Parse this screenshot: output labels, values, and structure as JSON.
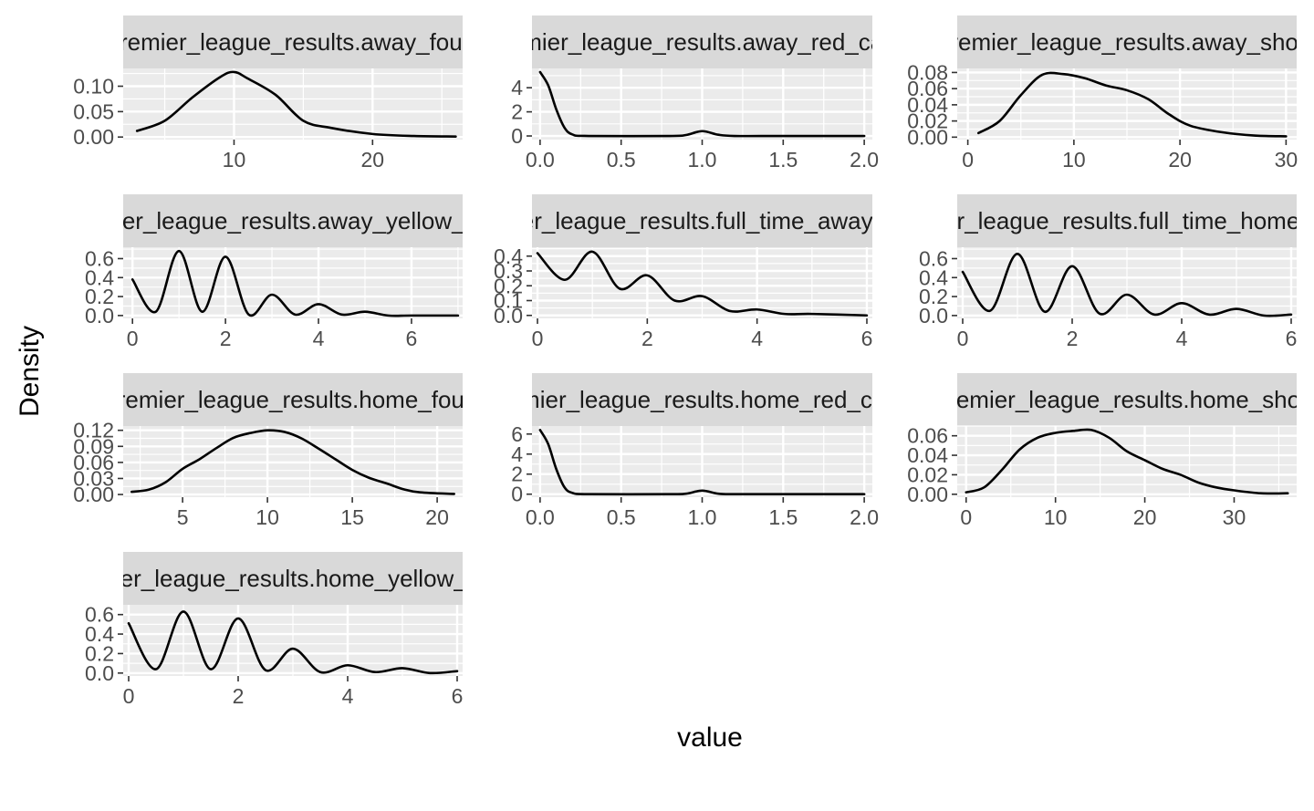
{
  "chart_data": {
    "type": "area",
    "xlabel": "value",
    "ylabel": "Density",
    "grid": true,
    "panels": [
      {
        "strip": "premier_league_results.away_fouls",
        "xlim": [
          2,
          26.5
        ],
        "ylim": [
          -0.005,
          0.135
        ],
        "xticks": [
          10,
          20
        ],
        "xtick_labels": [
          "10",
          "20"
        ],
        "yticks": [
          0.0,
          0.05,
          0.1
        ],
        "ytick_labels": [
          "0.00",
          "0.05",
          "0.10"
        ],
        "x": [
          3,
          5,
          7,
          9,
          10,
          11,
          13,
          15,
          17,
          20,
          23,
          26
        ],
        "y": [
          0.012,
          0.032,
          0.078,
          0.118,
          0.128,
          0.115,
          0.083,
          0.032,
          0.018,
          0.006,
          0.002,
          0.001
        ]
      },
      {
        "strip": "premier_league_results.away_red_cards",
        "xlim": [
          -0.05,
          2.05
        ],
        "ylim": [
          -0.3,
          5.6
        ],
        "xticks": [
          0,
          0.5,
          1,
          1.5,
          2
        ],
        "xtick_labels": [
          "0.0",
          "0.5",
          "1.0",
          "1.5",
          "2.0"
        ],
        "yticks": [
          0,
          2,
          4
        ],
        "ytick_labels": [
          "0",
          "2",
          "4"
        ],
        "x": [
          0,
          0.05,
          0.1,
          0.15,
          0.2,
          0.3,
          0.8,
          0.9,
          1.0,
          1.1,
          1.2,
          1.5,
          2.0
        ],
        "y": [
          5.3,
          4.2,
          2.2,
          0.7,
          0.12,
          0.0,
          0.0,
          0.08,
          0.4,
          0.1,
          0.0,
          0.0,
          0.0
        ]
      },
      {
        "strip": "premier_league_results.away_shots",
        "xlim": [
          -1,
          31
        ],
        "ylim": [
          -0.003,
          0.085
        ],
        "xticks": [
          0,
          10,
          20,
          30
        ],
        "xtick_labels": [
          "0",
          "10",
          "20",
          "30"
        ],
        "yticks": [
          0.0,
          0.02,
          0.04,
          0.06,
          0.08
        ],
        "ytick_labels": [
          "0.00",
          "0.02",
          "0.04",
          "0.06",
          "0.08"
        ],
        "x": [
          1,
          3,
          5,
          7,
          9,
          11,
          13,
          15,
          17,
          19,
          21,
          24,
          27,
          30
        ],
        "y": [
          0.005,
          0.02,
          0.052,
          0.077,
          0.078,
          0.073,
          0.064,
          0.058,
          0.047,
          0.028,
          0.014,
          0.006,
          0.002,
          0.001
        ]
      },
      {
        "strip": "premier_league_results.away_yellow_cards",
        "xlim": [
          -0.2,
          7.1
        ],
        "ylim": [
          -0.03,
          0.72
        ],
        "xticks": [
          0,
          2,
          4,
          6
        ],
        "xtick_labels": [
          "0",
          "2",
          "4",
          "6"
        ],
        "yticks": [
          0,
          0.2,
          0.4,
          0.6
        ],
        "ytick_labels": [
          "0.0",
          "0.2",
          "0.4",
          "0.6"
        ],
        "x": [
          0,
          0.5,
          1,
          1.5,
          2,
          2.5,
          3,
          3.5,
          4,
          4.5,
          5,
          5.5,
          6,
          7
        ],
        "y": [
          0.38,
          0.04,
          0.68,
          0.04,
          0.62,
          0.01,
          0.22,
          0.01,
          0.12,
          0.01,
          0.04,
          0.0,
          0.0,
          0.0
        ]
      },
      {
        "strip": "premier_league_results.full_time_away_goals",
        "xlim": [
          -0.1,
          6.1
        ],
        "ylim": [
          -0.02,
          0.46
        ],
        "xticks": [
          0,
          2,
          4,
          6
        ],
        "xtick_labels": [
          "0",
          "2",
          "4",
          "6"
        ],
        "yticks": [
          0,
          0.1,
          0.2,
          0.3,
          0.4
        ],
        "ytick_labels": [
          "0.0",
          "0.1",
          "0.2",
          "0.3",
          "0.4"
        ],
        "x": [
          0,
          0.5,
          1,
          1.5,
          2,
          2.5,
          3,
          3.5,
          4,
          4.5,
          5,
          6
        ],
        "y": [
          0.42,
          0.24,
          0.43,
          0.18,
          0.27,
          0.1,
          0.13,
          0.03,
          0.04,
          0.01,
          0.01,
          0.0
        ]
      },
      {
        "strip": "premier_league_results.full_time_home_goals",
        "xlim": [
          -0.1,
          6.1
        ],
        "ylim": [
          -0.03,
          0.72
        ],
        "xticks": [
          0,
          2,
          4,
          6
        ],
        "xtick_labels": [
          "0",
          "2",
          "4",
          "6"
        ],
        "yticks": [
          0,
          0.2,
          0.4,
          0.6
        ],
        "ytick_labels": [
          "0.0",
          "0.2",
          "0.4",
          "0.6"
        ],
        "x": [
          0,
          0.5,
          1,
          1.5,
          2,
          2.5,
          3,
          3.5,
          4,
          4.5,
          5,
          5.5,
          6
        ],
        "y": [
          0.46,
          0.05,
          0.65,
          0.04,
          0.52,
          0.02,
          0.22,
          0.01,
          0.13,
          0.01,
          0.07,
          0.0,
          0.01
        ]
      },
      {
        "strip": "premier_league_results.home_fouls",
        "xlim": [
          1.5,
          21.5
        ],
        "ylim": [
          -0.005,
          0.128
        ],
        "xticks": [
          5,
          10,
          15,
          20
        ],
        "xtick_labels": [
          "5",
          "10",
          "15",
          "20"
        ],
        "yticks": [
          0,
          0.03,
          0.06,
          0.09,
          0.12
        ],
        "ytick_labels": [
          "0.00",
          "0.03",
          "0.06",
          "0.09",
          "0.12"
        ],
        "x": [
          2,
          3,
          4,
          5,
          6,
          7,
          8,
          9,
          10,
          11,
          12,
          13,
          14,
          15,
          16,
          17,
          18,
          19,
          21
        ],
        "y": [
          0.005,
          0.009,
          0.023,
          0.048,
          0.066,
          0.087,
          0.106,
          0.115,
          0.12,
          0.117,
          0.105,
          0.086,
          0.066,
          0.046,
          0.031,
          0.021,
          0.01,
          0.004,
          0.001
        ]
      },
      {
        "strip": "premier_league_results.home_red_cards",
        "xlim": [
          -0.05,
          2.05
        ],
        "ylim": [
          -0.3,
          6.8
        ],
        "xticks": [
          0,
          0.5,
          1,
          1.5,
          2
        ],
        "xtick_labels": [
          "0.0",
          "0.5",
          "1.0",
          "1.5",
          "2.0"
        ],
        "yticks": [
          0,
          2,
          4,
          6
        ],
        "ytick_labels": [
          "0",
          "2",
          "4",
          "6"
        ],
        "x": [
          0,
          0.05,
          0.1,
          0.15,
          0.2,
          0.3,
          0.8,
          0.9,
          1.0,
          1.1,
          1.2,
          1.5,
          2.0
        ],
        "y": [
          6.4,
          5.0,
          2.5,
          0.7,
          0.12,
          0.0,
          0.0,
          0.05,
          0.35,
          0.05,
          0.0,
          0.0,
          0.0
        ]
      },
      {
        "strip": "premier_league_results.home_shots",
        "xlim": [
          -1,
          37
        ],
        "ylim": [
          -0.003,
          0.07
        ],
        "xticks": [
          0,
          10,
          20,
          30
        ],
        "xtick_labels": [
          "0",
          "10",
          "20",
          "30"
        ],
        "yticks": [
          0.0,
          0.02,
          0.04,
          0.06
        ],
        "ytick_labels": [
          "0.00",
          "0.02",
          "0.04",
          "0.06"
        ],
        "x": [
          0,
          2,
          4,
          6,
          8,
          10,
          12,
          14,
          16,
          18,
          20,
          22,
          24,
          26,
          28,
          30,
          33,
          36
        ],
        "y": [
          0.002,
          0.007,
          0.025,
          0.046,
          0.058,
          0.063,
          0.065,
          0.066,
          0.058,
          0.044,
          0.035,
          0.026,
          0.02,
          0.012,
          0.007,
          0.004,
          0.001,
          0.001
        ]
      },
      {
        "strip": "premier_league_results.home_yellow_cards",
        "xlim": [
          -0.1,
          6.1
        ],
        "ylim": [
          -0.03,
          0.7
        ],
        "xticks": [
          0,
          2,
          4,
          6
        ],
        "xtick_labels": [
          "0",
          "2",
          "4",
          "6"
        ],
        "yticks": [
          0,
          0.2,
          0.4,
          0.6
        ],
        "ytick_labels": [
          "0.0",
          "0.2",
          "0.4",
          "0.6"
        ],
        "x": [
          0,
          0.5,
          1,
          1.5,
          2,
          2.5,
          3,
          3.5,
          4,
          4.5,
          5,
          5.5,
          6
        ],
        "y": [
          0.51,
          0.04,
          0.63,
          0.04,
          0.56,
          0.03,
          0.25,
          0.01,
          0.08,
          0.01,
          0.05,
          0.0,
          0.02
        ]
      }
    ]
  }
}
